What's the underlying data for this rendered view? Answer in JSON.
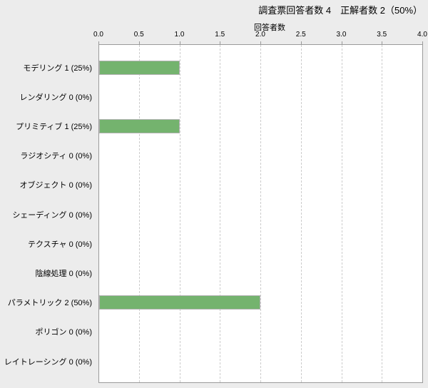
{
  "title": "調査票回答者数 4　正解者数 2（50%）",
  "chart_data": {
    "type": "bar",
    "orientation": "horizontal",
    "title": "調査票回答者数 4　正解者数 2（50%）",
    "xlabel": "回答者数",
    "categories": [
      "モデリング",
      "レンダリング",
      "プリミティブ",
      "ラジオシティ",
      "オブジェクト",
      "シェーディング",
      "テクスチャ",
      "陰線処理",
      "パラメトリック",
      "ポリゴン",
      "レイトレーシング"
    ],
    "values": [
      1,
      0,
      1,
      0,
      0,
      0,
      0,
      0,
      2,
      0,
      0
    ],
    "percent_labels": [
      "25%",
      "0%",
      "25%",
      "0%",
      "0%",
      "0%",
      "0%",
      "0%",
      "50%",
      "0%",
      "0%"
    ],
    "row_labels": [
      "モデリング 1 (25%)",
      "レンダリング 0 (0%)",
      "プリミティブ 1 (25%)",
      "ラジオシティ 0 (0%)",
      "オブジェクト 0 (0%)",
      "シェーディング 0 (0%)",
      "テクスチャ 0 (0%)",
      "陰線処理 0 (0%)",
      "パラメトリック 2 (50%)",
      "ポリゴン 0 (0%)",
      "レイトレーシング 0 (0%)"
    ],
    "xlim": [
      0,
      4
    ],
    "xticks": [
      "0.0",
      "0.5",
      "1.0",
      "1.5",
      "2.0",
      "2.5",
      "3.0",
      "3.5",
      "4.0"
    ],
    "grid": "vertical-dashed",
    "legend": "none",
    "colors": {
      "bar_fill": "#74b36e",
      "bar_border": "#b3b3b3",
      "plot_bg": "#ffffff",
      "page_bg": "#ececec",
      "plot_border": "#9a9a9a",
      "gridline": "#cccccc",
      "text": "#000000"
    }
  }
}
